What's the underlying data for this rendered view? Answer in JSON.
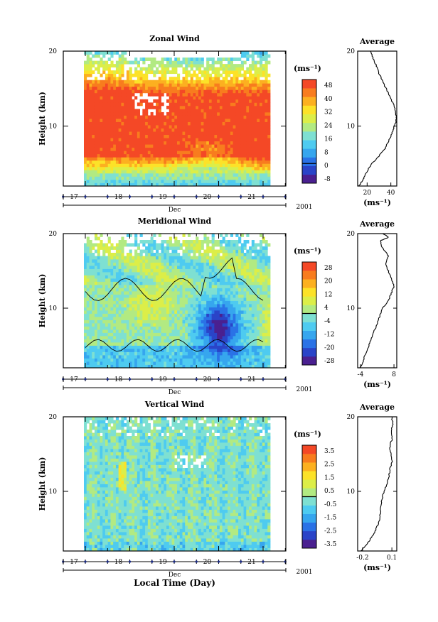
{
  "chart_data": [
    {
      "type": "heatmap",
      "title": "Zonal Wind",
      "ylabel": "Height (km)",
      "ylim": [
        2,
        20
      ],
      "yticks": [
        "20",
        "10"
      ],
      "xticks": [
        "17",
        "18",
        "19",
        "20",
        "21"
      ],
      "xunit": "Dec",
      "year": "2001",
      "colorbar": {
        "unit": "(ms⁻¹)",
        "labels": [
          "48",
          "40",
          "32",
          "24",
          "16",
          "8",
          "0",
          "-8"
        ],
        "colors": [
          "#4a2090",
          "#2a44c8",
          "#2a72e6",
          "#36a6ee",
          "#4ecbf0",
          "#7ee0d2",
          "#b2ea82",
          "#dcee48",
          "#fce228",
          "#fcb020",
          "#f87c1e",
          "#f44826"
        ]
      },
      "average": {
        "title": "Average",
        "xticks": [
          "20",
          "40"
        ],
        "xunit": "(ms⁻¹)",
        "xlim": [
          12,
          45
        ],
        "profile": [
          [
            2,
            13
          ],
          [
            2.5,
            15
          ],
          [
            3,
            17
          ],
          [
            4,
            20
          ],
          [
            5,
            24
          ],
          [
            6,
            30
          ],
          [
            7,
            35
          ],
          [
            8,
            38
          ],
          [
            9,
            41
          ],
          [
            10,
            43
          ],
          [
            11,
            45
          ],
          [
            12,
            44
          ],
          [
            13,
            42
          ],
          [
            14,
            39
          ],
          [
            15,
            36
          ],
          [
            16,
            33
          ],
          [
            17,
            30
          ],
          [
            18,
            28
          ],
          [
            19,
            25
          ],
          [
            20,
            23
          ]
        ]
      }
    },
    {
      "type": "heatmap",
      "title": "Meridional Wind",
      "ylabel": "Height (km)",
      "ylim": [
        2,
        20
      ],
      "yticks": [
        "20",
        "10"
      ],
      "xticks": [
        "17",
        "18",
        "19",
        "20",
        "21"
      ],
      "xunit": "Dec",
      "year": "2001",
      "colorbar": {
        "unit": "(ms⁻¹)",
        "labels": [
          "28",
          "20",
          "12",
          "4",
          "-4",
          "-12",
          "-20",
          "-28"
        ],
        "colors": [
          "#4a2090",
          "#2a44c8",
          "#2a72e6",
          "#36a6ee",
          "#4ecbf0",
          "#7ee0d2",
          "#b2ea82",
          "#dcee48",
          "#fce228",
          "#fcb020",
          "#f87c1e",
          "#f44826"
        ]
      },
      "average": {
        "title": "Average",
        "xticks": [
          "-4",
          "8"
        ],
        "xunit": "(ms⁻¹)",
        "xlim": [
          -5,
          9
        ],
        "profile": [
          [
            2,
            -4
          ],
          [
            3,
            -3
          ],
          [
            4,
            -2
          ],
          [
            5,
            -1
          ],
          [
            6,
            0
          ],
          [
            7,
            1
          ],
          [
            8,
            2
          ],
          [
            9,
            3
          ],
          [
            10,
            4
          ],
          [
            11,
            6
          ],
          [
            12,
            7
          ],
          [
            13,
            8
          ],
          [
            14,
            7
          ],
          [
            15,
            6
          ],
          [
            16,
            5
          ],
          [
            17,
            6
          ],
          [
            18,
            4
          ],
          [
            19,
            3
          ],
          [
            19.5,
            6
          ],
          [
            20,
            4
          ]
        ]
      }
    },
    {
      "type": "heatmap",
      "title": "Vertical Wind",
      "ylabel": "Height (km)",
      "ylim": [
        2,
        20
      ],
      "yticks": [
        "20",
        "10"
      ],
      "xticks": [
        "17",
        "18",
        "19",
        "20",
        "21"
      ],
      "xunit": "Dec",
      "year": "2001",
      "colorbar": {
        "unit": "(ms⁻¹)",
        "labels": [
          "3.5",
          "2.5",
          "1.5",
          "0.5",
          "-0.5",
          "-1.5",
          "-2.5",
          "-3.5"
        ],
        "colors": [
          "#4a2090",
          "#2a44c8",
          "#2a72e6",
          "#36a6ee",
          "#4ecbf0",
          "#7ee0d2",
          "#b2ea82",
          "#dcee48",
          "#fce228",
          "#fcb020",
          "#f87c1e",
          "#f44826"
        ]
      },
      "average": {
        "title": "Average",
        "xticks": [
          "-0.2",
          "0.1"
        ],
        "xunit": "(ms⁻¹)",
        "xlim": [
          -0.25,
          0.15
        ],
        "profile": [
          [
            2,
            -0.22
          ],
          [
            3,
            -0.15
          ],
          [
            4,
            -0.1
          ],
          [
            5,
            -0.06
          ],
          [
            6,
            -0.03
          ],
          [
            7,
            -0.02
          ],
          [
            8,
            -0.01
          ],
          [
            9,
            0.0
          ],
          [
            10,
            0.02
          ],
          [
            11,
            0.05
          ],
          [
            12,
            0.07
          ],
          [
            13,
            0.08
          ],
          [
            14,
            0.1
          ],
          [
            15,
            0.09
          ],
          [
            16,
            0.08
          ],
          [
            17,
            0.1
          ],
          [
            18,
            0.09
          ],
          [
            19,
            0.11
          ],
          [
            20,
            0.1
          ]
        ]
      }
    }
  ],
  "xlabel": "Local Time (Day)"
}
